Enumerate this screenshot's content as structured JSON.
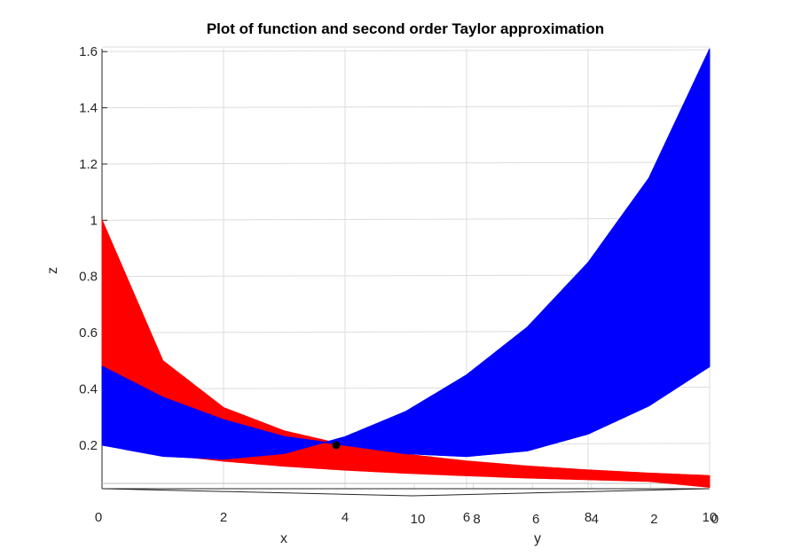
{
  "chart_data": {
    "type": "surface-3d",
    "title": "Plot of function and second order Taylor approximation",
    "xlabel": "x",
    "ylabel": "y",
    "zlabel": "z",
    "x_ticks": [
      "0",
      "2",
      "4",
      "6",
      "8",
      "10"
    ],
    "y_ticks": [
      "0",
      "2",
      "4",
      "6",
      "8",
      "10"
    ],
    "z_ticks": [
      "0.2",
      "0.4",
      "0.6",
      "0.8",
      "1",
      "1.2",
      "1.4",
      "1.6"
    ],
    "xlim": [
      0,
      10
    ],
    "ylim": [
      0,
      10
    ],
    "zlim": [
      0.045,
      1.61
    ],
    "grid": true,
    "view": "x-z face, y receding nearly edge-on",
    "expansion_point": {
      "x": 4,
      "y": 0,
      "z": 0.2
    },
    "series": [
      {
        "kind": "function surface",
        "color": "#ff0000",
        "front_edge": {
          "x": [
            0,
            1,
            2,
            3,
            4,
            5,
            6,
            7,
            8,
            9,
            10
          ],
          "z": [
            1.0,
            0.5,
            0.333,
            0.25,
            0.2,
            0.167,
            0.143,
            0.125,
            0.111,
            0.1,
            0.091
          ]
        },
        "back_edge": {
          "x": [
            0,
            1,
            2,
            3,
            4,
            5,
            6,
            7,
            8,
            9,
            10
          ],
          "z": [
            0.2,
            0.167,
            0.143,
            0.125,
            0.111,
            0.1,
            0.091,
            0.083,
            0.077,
            0.071,
            0.05
          ]
        }
      },
      {
        "kind": "second order Taylor approximation",
        "color": "#0000ff",
        "front_edge": {
          "x": [
            0,
            1,
            2,
            3,
            4,
            5,
            6,
            7,
            8,
            9,
            10
          ],
          "z": [
            0.48,
            0.37,
            0.29,
            0.23,
            0.2,
            0.17,
            0.16,
            0.18,
            0.24,
            0.34,
            0.48
          ]
        },
        "back_edge": {
          "x": [
            0,
            1,
            2,
            3,
            4,
            5,
            6,
            7,
            8,
            9,
            10
          ],
          "z": [
            0.2,
            0.16,
            0.15,
            0.17,
            0.23,
            0.32,
            0.45,
            0.62,
            0.85,
            1.15,
            1.61
          ]
        }
      }
    ]
  }
}
